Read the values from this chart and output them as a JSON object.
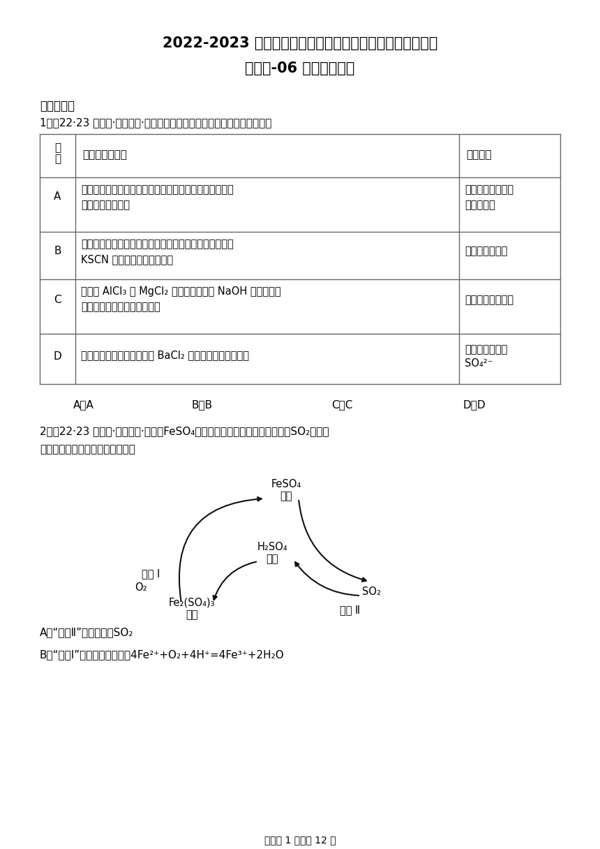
{
  "title_line1": "2022-2023 学年高一化学上学期期末试题汇编《苏教版化学",
  "title_line2": "期末》-06 硫与环境保护",
  "section1": "一、单选题",
  "q1_prefix": "1．（22·23 高一上·浙江宁波·期末）根据实验操作现象得出的结论正确的是",
  "header_col1": "选项",
  "header_col2": "实验操作和现象",
  "header_col3": "实验结论",
  "rowA_letter": "A",
  "rowA_op1": "用鑰丝蒈取少量某溶液进行焉色试验，有黄色火焰，透过",
  "rowA_op2": "蓝色鑴玻璃显紫色",
  "rowA_con1": "该溶液中一定含有",
  "rowA_con2": "钒盐和钒盐",
  "rowB_letter": "B",
  "rowB_op1": "取少量可能被氧化的还原铁粉，加稀盐酸溶解，滴入几滴",
  "rowB_op2": "KSCN 溶液，溶液不显血红色",
  "rowB_con": "还原铁粉未变质",
  "rowC_letter": "C",
  "rowC_op1": "分别向 AlCl₃ 和 MgCl₂ 溶液中加入过量 NaOH 溶液，前者",
  "rowC_op2": "产生的沉淠溶解，后者不溢解",
  "rowC_con": "镁的金属性强于铝",
  "rowD_letter": "D",
  "rowD_op": "向某溶液中加入盐酸酸化的 BaCl₂ 溶液，有白色沉淠生成",
  "rowD_con1": "该溶液中一定含",
  "rowD_con2": "SO₄²⁻",
  "optA": "A．A",
  "optB": "B．B",
  "optC": "C．C",
  "optD": "D．D",
  "q2_line1": "2．（22·23 高一上·浙江宁波·期末）FeSO₄溶液可用于脱除烟气中的有害气体SO₂，其原",
  "q2_line2": "理如图所示。下列说法不正确的是",
  "node_feso4_1": "FeSO₄",
  "node_feso4_2": "溶液",
  "node_h2so4_1": "H₂SO₄",
  "node_h2so4_2": "溶液",
  "node_fe2so4_1": "Fe₂(SO₄)₃",
  "node_fe2so4_2": "溶液",
  "node_so2": "SO₂",
  "label_fanying1": "反应 Ⅰ",
  "label_o2": "O₂",
  "label_fanying2": "反应 Ⅱ",
  "ansA": "A．“反应Ⅱ”中还原剂为SO₂",
  "ansB": "B．“反应Ⅰ”的离子方程式为：4Fe²⁺+O₂+4H⁺=4Fe³⁺+2H₂O",
  "footer": "试卷第 1 页，共 12 页",
  "bg_color": "#ffffff",
  "text_color": "#000000",
  "table_border_color": "#666666"
}
